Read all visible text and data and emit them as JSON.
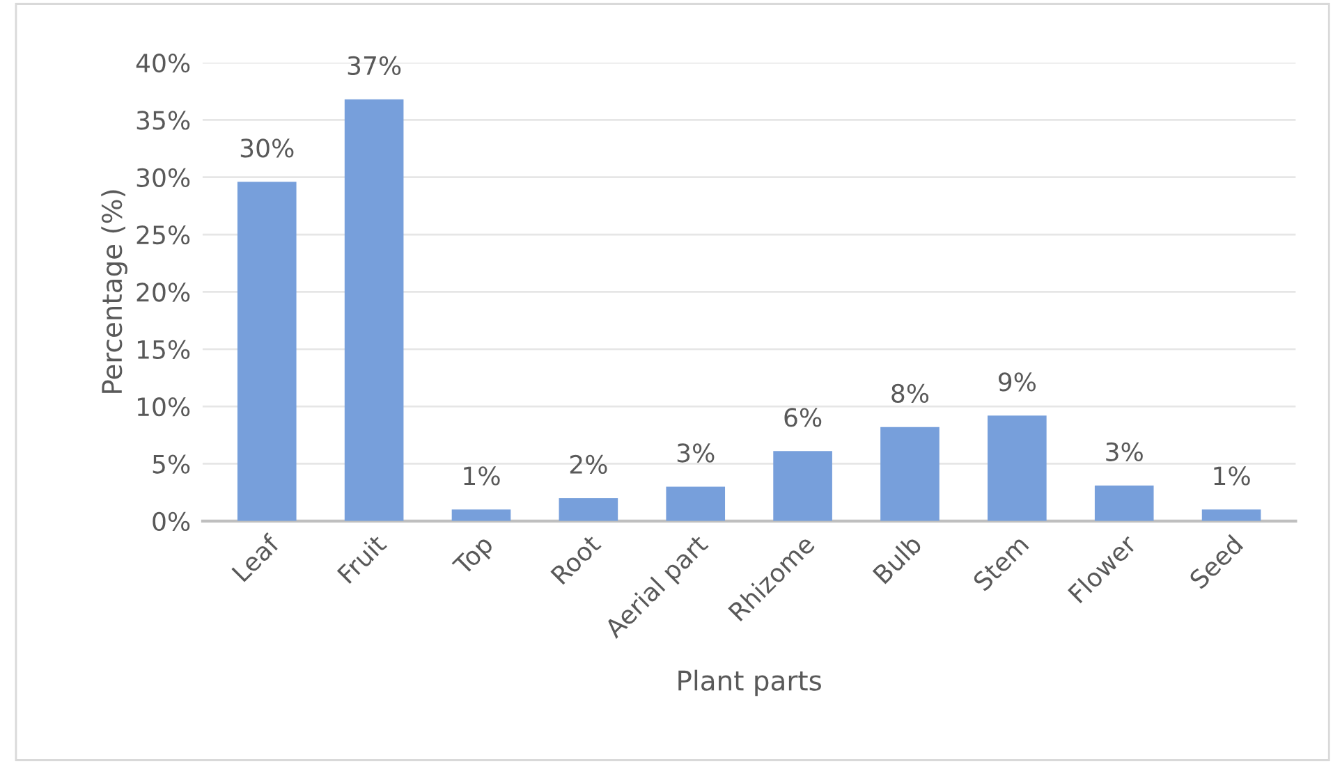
{
  "chart_data": {
    "type": "bar",
    "xlabel": "Plant parts",
    "ylabel": "Percentage (%)",
    "categories": [
      "Leaf",
      "Fruit",
      "Top",
      "Root",
      "Aerial part",
      "Rhizome",
      "Bulb",
      "Stem",
      "Flower",
      "Seed"
    ],
    "values": [
      29.6,
      36.8,
      1,
      2,
      3,
      6.1,
      8.2,
      9.2,
      3.1,
      1
    ],
    "value_labels": [
      "30%",
      "37%",
      "1%",
      "2%",
      "3%",
      "6%",
      "8%",
      "9%",
      "3%",
      "1%"
    ],
    "color": "#779fdb",
    "ylim": [
      0,
      40
    ],
    "yticks": [
      {
        "value": 0,
        "label": "0%"
      },
      {
        "value": 5,
        "label": "5%"
      },
      {
        "value": 10,
        "label": "10%"
      },
      {
        "value": 15,
        "label": "15%"
      },
      {
        "value": 20,
        "label": "20%"
      },
      {
        "value": 25,
        "label": "25%"
      },
      {
        "value": 30,
        "label": "30%"
      },
      {
        "value": 35,
        "label": "35%"
      },
      {
        "value": 40,
        "label": "40%"
      }
    ],
    "grid": "y"
  }
}
